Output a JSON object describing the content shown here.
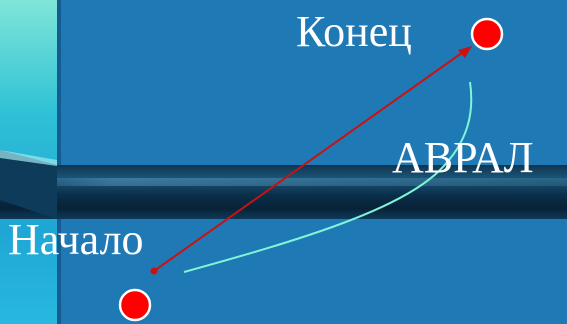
{
  "labels": {
    "end": "Конец",
    "start": "Начало",
    "alarm": "АВРАЛ"
  },
  "colors": {
    "background": "#1f79b4",
    "marker": "#ff0000",
    "arrow": "#cc1111",
    "curve": "#7ff5d8",
    "text": "#ffffff"
  }
}
